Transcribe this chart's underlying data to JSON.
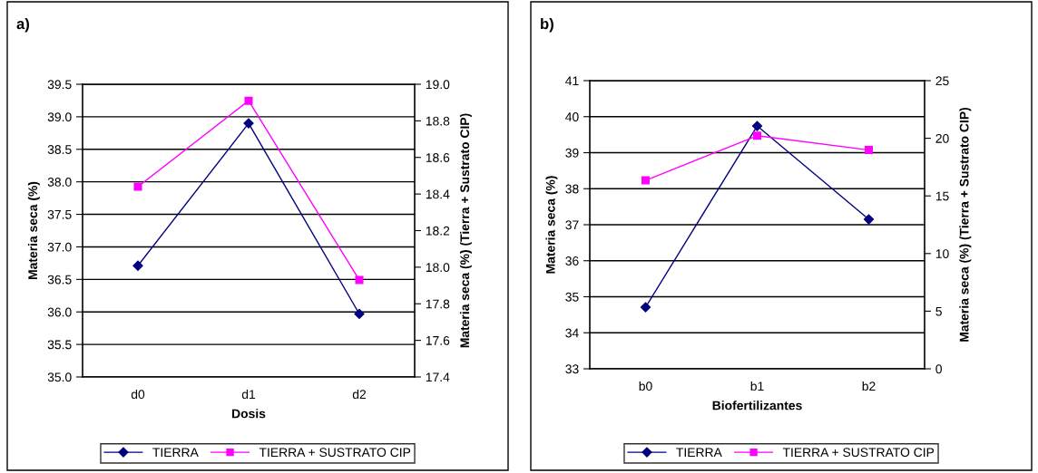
{
  "chart_data": [
    {
      "type": "line",
      "title": "a)",
      "xlabel": "Dosis",
      "ylabel": "Materia seca (%)",
      "y2label": "Materia seca (%) (Tierra + Sustrato CIP)",
      "categories": [
        "d0",
        "d1",
        "d2"
      ],
      "series": [
        {
          "name": "TIERRA",
          "color": "#000080",
          "marker": "diamond",
          "values": [
            36.71,
            38.9,
            35.97
          ]
        },
        {
          "name": "TIERRA + SUSTRATO CIP",
          "color": "#ff00ff",
          "marker": "square",
          "axis": "y2",
          "values": [
            18.44,
            18.91,
            17.93
          ]
        }
      ],
      "ylim": [
        35.0,
        39.5
      ],
      "yticks": [
        {
          "value": 35.0,
          "label": "35.0"
        },
        {
          "value": 35.5,
          "label": "35.5"
        },
        {
          "value": 36.0,
          "label": "36.0"
        },
        {
          "value": 36.5,
          "label": "36.5"
        },
        {
          "value": 37.0,
          "label": "37.0"
        },
        {
          "value": 37.5,
          "label": "37.5"
        },
        {
          "value": 38.0,
          "label": "38.0"
        },
        {
          "value": 38.5,
          "label": "38.5"
        },
        {
          "value": 39.0,
          "label": "39.0"
        },
        {
          "value": 39.5,
          "label": "39.5"
        }
      ],
      "y2lim": [
        17.4,
        19.0
      ],
      "y2ticks": [
        17.4,
        17.6,
        17.8,
        {
          "value": 18.0,
          "label": "18.0"
        },
        18.2,
        18.4,
        18.6,
        18.8,
        {
          "value": 19.0,
          "label": "19.0"
        }
      ],
      "grid": "y",
      "legend": "bottom",
      "line_style": "solid"
    },
    {
      "type": "line",
      "title": "b)",
      "xlabel": "Biofertilizantes",
      "ylabel": "Materia seca (%)",
      "y2label": "Materia seca (%) (Tierra + Sustrato CIP)",
      "categories": [
        "b0",
        "b1",
        "b2"
      ],
      "series": [
        {
          "name": "TIERRA",
          "color": "#000080",
          "marker": "diamond",
          "values": [
            34.71,
            39.74,
            37.15
          ]
        },
        {
          "name": "TIERRA + SUSTRATO CIP",
          "color": "#ff00ff",
          "marker": "square",
          "axis": "y2",
          "values": [
            16.35,
            20.22,
            18.98
          ]
        }
      ],
      "ylim": [
        33,
        41
      ],
      "yticks": [
        33,
        34,
        35,
        36,
        37,
        38,
        39,
        40,
        41
      ],
      "y2lim": [
        0,
        25
      ],
      "y2ticks": [
        0,
        5,
        10,
        15,
        20,
        25
      ],
      "grid": "y",
      "legend": "bottom",
      "line_style": "solid"
    }
  ]
}
